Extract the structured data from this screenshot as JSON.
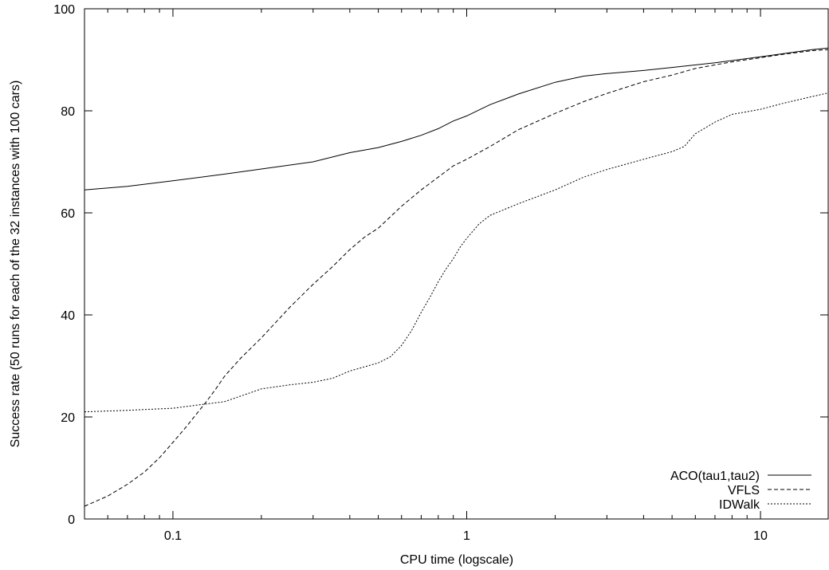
{
  "chart_data": {
    "type": "line",
    "title": "",
    "xlabel": "CPU time (logscale)",
    "ylabel": "Success rate (50 runs for each of the 32 instances with 100 cars)",
    "xscale": "log",
    "xlim": [
      0.05,
      17
    ],
    "ylim": [
      0,
      100
    ],
    "x_ticks": [
      {
        "value": 0.1,
        "label": "0.1"
      },
      {
        "value": 1,
        "label": "1"
      },
      {
        "value": 10,
        "label": "10"
      }
    ],
    "y_ticks": [
      {
        "value": 0,
        "label": "0"
      },
      {
        "value": 20,
        "label": "20"
      },
      {
        "value": 40,
        "label": "40"
      },
      {
        "value": 60,
        "label": "60"
      },
      {
        "value": 80,
        "label": "80"
      },
      {
        "value": 100,
        "label": "100"
      }
    ],
    "grid": false,
    "legend_position": "bottom-right",
    "series": [
      {
        "name": "ACO(tau1,tau2)",
        "style": "solid",
        "x": [
          0.05,
          0.07,
          0.1,
          0.15,
          0.2,
          0.3,
          0.4,
          0.5,
          0.6,
          0.7,
          0.8,
          0.9,
          1.0,
          1.2,
          1.5,
          2.0,
          2.5,
          3.0,
          4.0,
          5.0,
          7.0,
          10.0,
          15.0,
          17.0
        ],
        "values": [
          64.5,
          65.2,
          66.3,
          67.6,
          68.6,
          70.0,
          71.8,
          72.8,
          74.0,
          75.2,
          76.5,
          78.0,
          79.0,
          81.2,
          83.3,
          85.6,
          86.8,
          87.3,
          87.9,
          88.5,
          89.4,
          90.6,
          92.0,
          92.3
        ]
      },
      {
        "name": "VFLS",
        "style": "dashed",
        "x": [
          0.05,
          0.06,
          0.07,
          0.08,
          0.09,
          0.1,
          0.11,
          0.12,
          0.13,
          0.14,
          0.15,
          0.17,
          0.2,
          0.25,
          0.3,
          0.35,
          0.4,
          0.45,
          0.5,
          0.6,
          0.7,
          0.8,
          0.9,
          1.0,
          1.2,
          1.5,
          2.0,
          2.5,
          3.0,
          4.0,
          5.0,
          6.0,
          7.0,
          8.0,
          10.0,
          12.0,
          15.0,
          17.0
        ],
        "values": [
          2.5,
          4.5,
          6.8,
          9.2,
          12.0,
          15.0,
          17.8,
          20.5,
          23.0,
          25.5,
          28.0,
          31.5,
          35.5,
          41.5,
          46.0,
          49.5,
          52.8,
          55.3,
          57.0,
          61.3,
          64.5,
          67.0,
          69.2,
          70.5,
          73.0,
          76.3,
          79.5,
          81.8,
          83.4,
          85.7,
          87.0,
          88.3,
          89.0,
          89.6,
          90.4,
          91.1,
          91.8,
          92.0
        ]
      },
      {
        "name": "IDWalk",
        "style": "dotted",
        "x": [
          0.05,
          0.07,
          0.1,
          0.12,
          0.15,
          0.2,
          0.25,
          0.3,
          0.35,
          0.4,
          0.5,
          0.55,
          0.6,
          0.65,
          0.7,
          0.75,
          0.8,
          0.85,
          0.9,
          0.95,
          1.0,
          1.1,
          1.2,
          1.5,
          2.0,
          2.5,
          3.0,
          4.0,
          5.0,
          5.5,
          6.0,
          7.0,
          8.0,
          10.0,
          12.0,
          15.0,
          17.0
        ],
        "values": [
          21.0,
          21.3,
          21.7,
          22.3,
          23.0,
          25.5,
          26.3,
          26.8,
          27.6,
          29.0,
          30.6,
          31.8,
          34.0,
          37.0,
          40.5,
          43.5,
          46.5,
          49.0,
          51.0,
          53.3,
          55.0,
          57.8,
          59.5,
          61.8,
          64.5,
          67.0,
          68.5,
          70.5,
          72.0,
          73.0,
          75.5,
          77.8,
          79.3,
          80.3,
          81.5,
          82.8,
          83.5
        ]
      }
    ]
  }
}
